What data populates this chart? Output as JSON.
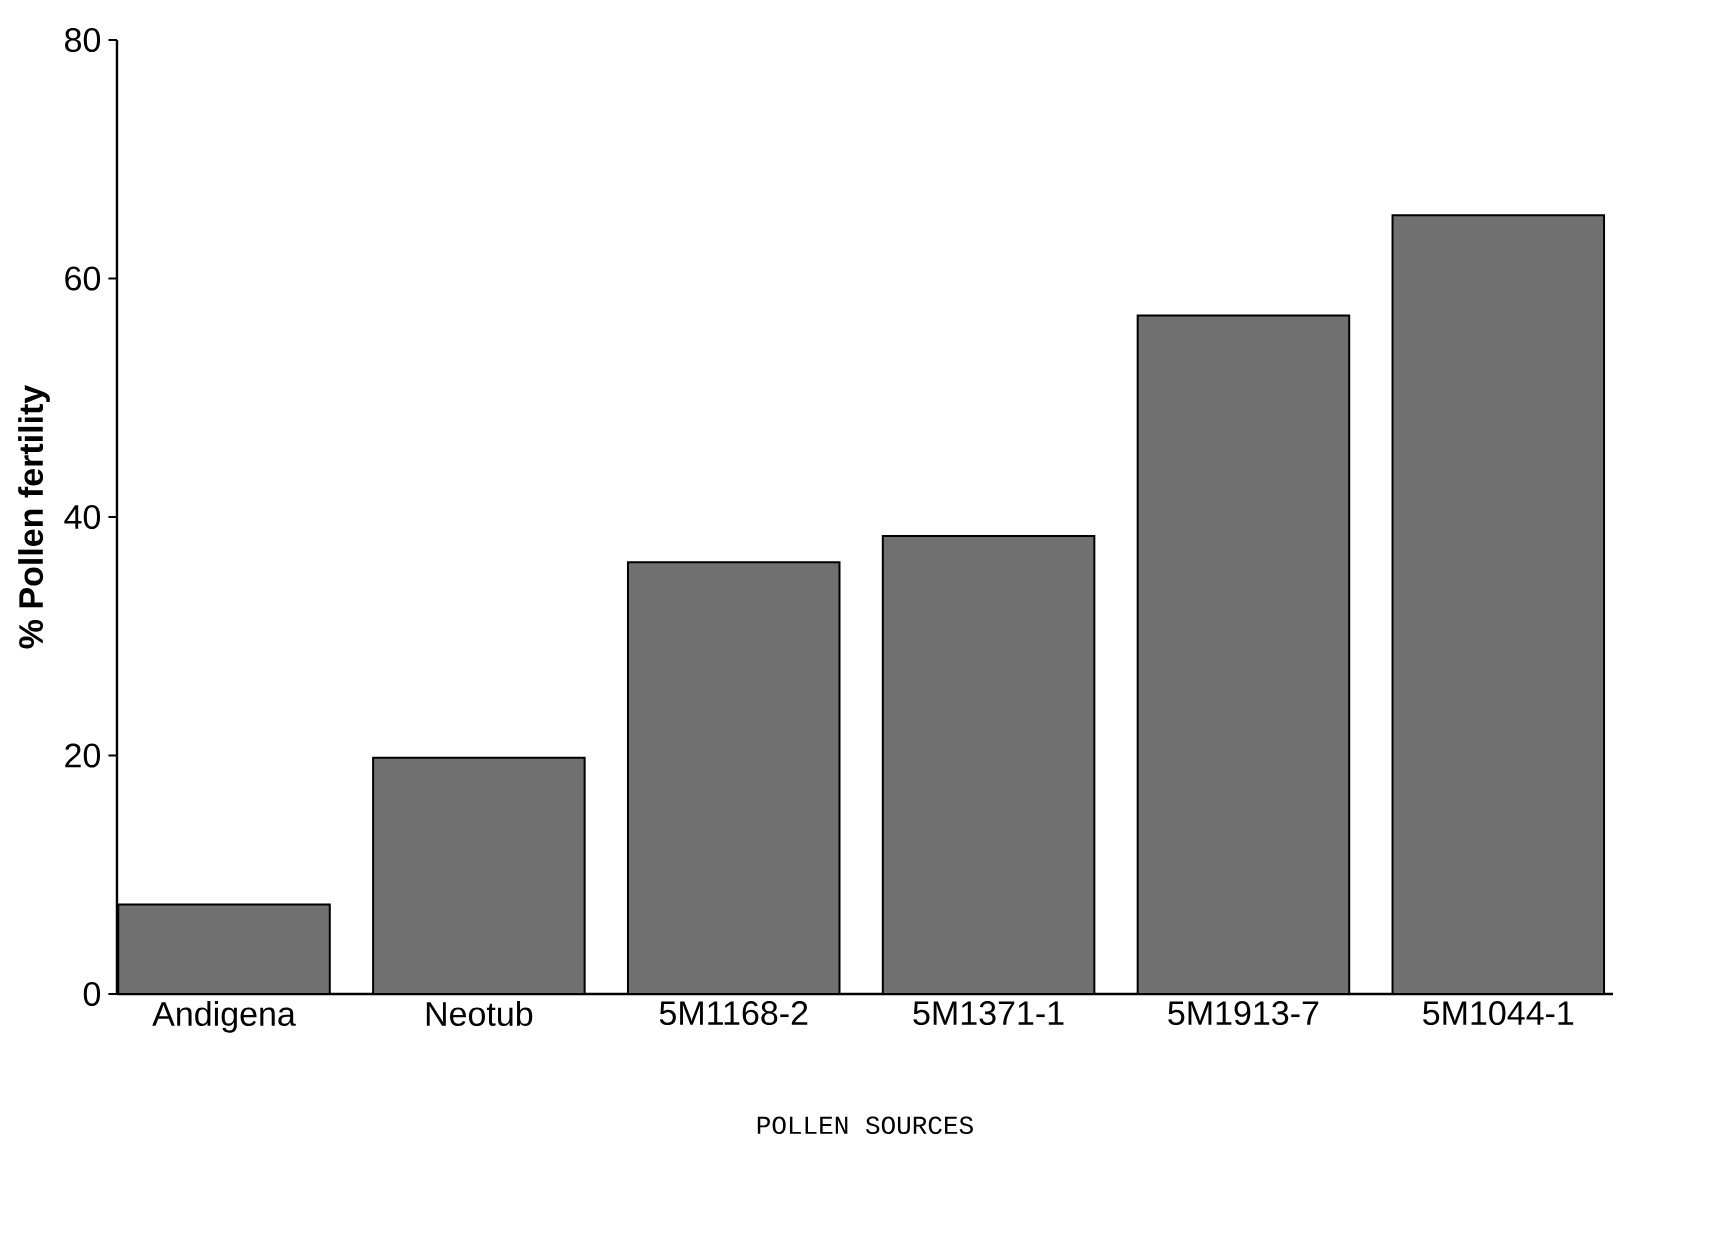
{
  "chart_data": {
    "type": "bar",
    "xlabel": "POLLEN SOURCES",
    "ylabel": "% Pollen fertility",
    "categories": [
      "Andigena",
      "Neotub",
      "5M1168-2",
      "5M1371-1",
      "5M1913-7",
      "5M1044-1"
    ],
    "values": [
      7.5,
      19.8,
      36.2,
      38.4,
      56.9,
      65.3
    ],
    "color": "#707070",
    "ylim": [
      0,
      80
    ],
    "yticks": [
      0,
      20,
      40,
      60,
      80
    ]
  }
}
